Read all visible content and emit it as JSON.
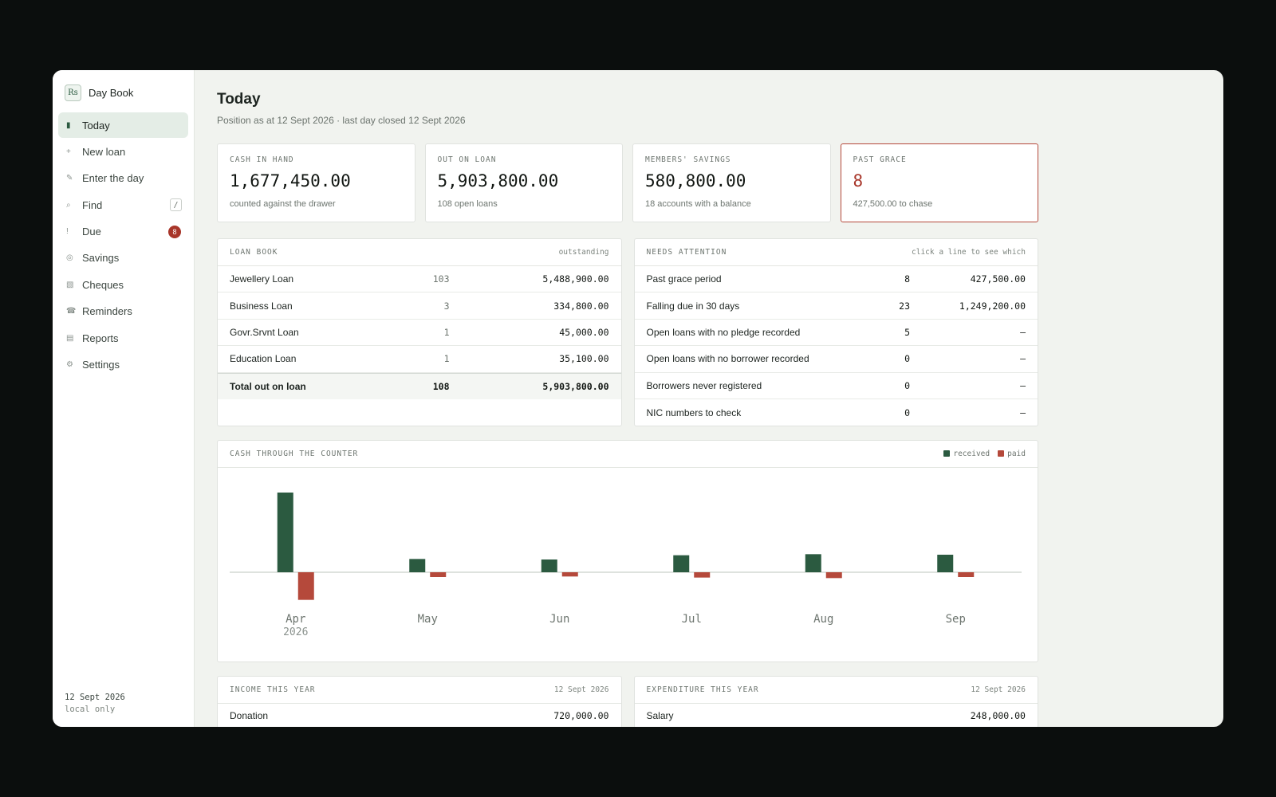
{
  "brand": {
    "logo": "Rs",
    "name": "Day Book"
  },
  "nav": [
    {
      "icon": "▮",
      "label": "Today",
      "active": true
    },
    {
      "icon": "+",
      "label": "New loan"
    },
    {
      "icon": "✎",
      "label": "Enter the day"
    },
    {
      "icon": "⌕",
      "label": "Find",
      "kbd": "/"
    },
    {
      "icon": "!",
      "label": "Due",
      "badge": "8"
    },
    {
      "icon": "◎",
      "label": "Savings"
    },
    {
      "icon": "▧",
      "label": "Cheques"
    },
    {
      "icon": "☎",
      "label": "Reminders"
    },
    {
      "icon": "▤",
      "label": "Reports"
    },
    {
      "icon": "⚙",
      "label": "Settings"
    }
  ],
  "footer": {
    "date": "12 Sept 2026",
    "mode": "local only"
  },
  "page": {
    "title": "Today",
    "subtitle": "Position as at 12 Sept 2026 · last day closed 12 Sept 2026"
  },
  "kpis": [
    {
      "label": "CASH IN HAND",
      "value": "1,677,450.00",
      "note": "counted against the drawer"
    },
    {
      "label": "OUT ON LOAN",
      "value": "5,903,800.00",
      "note": "108 open loans"
    },
    {
      "label": "MEMBERS' SAVINGS",
      "value": "580,800.00",
      "note": "18 accounts with a balance"
    },
    {
      "label": "PAST GRACE",
      "value": "8",
      "note": "427,500.00 to chase"
    }
  ],
  "loan_book": {
    "title": "LOAN BOOK",
    "aside": "outstanding",
    "rows": [
      {
        "name": "Jewellery Loan",
        "count": "103",
        "amount": "5,488,900.00"
      },
      {
        "name": "Business Loan",
        "count": "3",
        "amount": "334,800.00"
      },
      {
        "name": "Govr.Srvnt Loan",
        "count": "1",
        "amount": "45,000.00"
      },
      {
        "name": "Education Loan",
        "count": "1",
        "amount": "35,100.00"
      }
    ],
    "total": {
      "name": "Total out on loan",
      "count": "108",
      "amount": "5,903,800.00"
    }
  },
  "attention": {
    "title": "NEEDS ATTENTION",
    "aside": "click a line to see which",
    "rows": [
      {
        "name": "Past grace period",
        "count": "8",
        "amount": "427,500.00"
      },
      {
        "name": "Falling due in 30 days",
        "count": "23",
        "amount": "1,249,200.00"
      },
      {
        "name": "Open loans with no pledge recorded",
        "count": "5",
        "amount": "–"
      },
      {
        "name": "Open loans with no borrower recorded",
        "count": "0",
        "amount": "–"
      },
      {
        "name": "Borrowers never registered",
        "count": "0",
        "amount": "–"
      },
      {
        "name": "NIC numbers to check",
        "count": "0",
        "amount": "–"
      }
    ]
  },
  "chart_panel": {
    "title": "CASH THROUGH THE COUNTER"
  },
  "chart_data": {
    "type": "bar",
    "categories": [
      "Apr",
      "May",
      "Jun",
      "Jul",
      "Aug",
      "Sep"
    ],
    "year_label": "2026",
    "series": [
      {
        "name": "received",
        "color": "#2b5a40",
        "values": [
          1500000,
          250000,
          240000,
          320000,
          340000,
          330000
        ]
      },
      {
        "name": "paid",
        "color": "#b5493b",
        "values": [
          -520000,
          -90000,
          -80000,
          -100000,
          -110000,
          -90000
        ]
      }
    ]
  },
  "income": {
    "title": "INCOME THIS YEAR",
    "date": "12 Sept 2026",
    "rows": [
      {
        "name": "Donation",
        "amount": "720,000.00"
      }
    ]
  },
  "expenditure": {
    "title": "EXPENDITURE THIS YEAR",
    "date": "12 Sept 2026",
    "rows": [
      {
        "name": "Salary",
        "amount": "248,000.00"
      }
    ]
  }
}
